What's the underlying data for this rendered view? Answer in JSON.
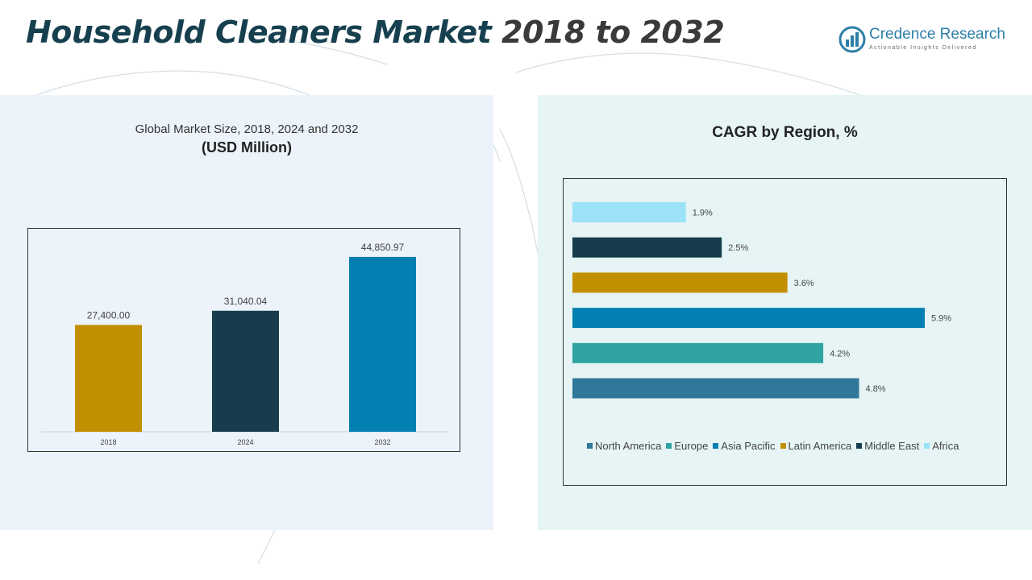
{
  "header": {
    "title_part1": "Household Cleaners Market",
    "title_part2": "2018 to 2032"
  },
  "logo": {
    "name": "Credence Research",
    "tagline": "Actionable Insights Delivered",
    "color": "#2d7fa8"
  },
  "chart_data": [
    {
      "type": "bar",
      "title": "Global Market Size, 2018, 2024 and 2032",
      "subtitle": "(USD Million)",
      "categories": [
        "2018",
        "2024",
        "2032"
      ],
      "values": [
        27400.0,
        31040.04,
        44850.97
      ],
      "value_labels": [
        "27,400.00",
        "31,040.04",
        "44,850.97"
      ],
      "colors": [
        "#c18f00",
        "#173d4d",
        "#047fb1"
      ],
      "ylim": [
        0,
        50000
      ],
      "grid": false
    },
    {
      "type": "bar",
      "orientation": "horizontal",
      "title": "CAGR by Region, %",
      "categories": [
        "North America",
        "Europe",
        "Asia Pacific",
        "Latin America",
        "Middle East",
        "Africa"
      ],
      "values": [
        4.8,
        4.2,
        5.9,
        3.6,
        2.5,
        1.9
      ],
      "value_labels": [
        "4.8%",
        "4.2%",
        "5.9%",
        "3.6%",
        "2.5%",
        "1.9%"
      ],
      "colors": [
        "#2f7899",
        "#2fa3a1",
        "#047fb1",
        "#c18f00",
        "#173d4d",
        "#9be2f8"
      ],
      "xlim": [
        0,
        6.5
      ],
      "legend": "bottom",
      "grid": false
    }
  ]
}
